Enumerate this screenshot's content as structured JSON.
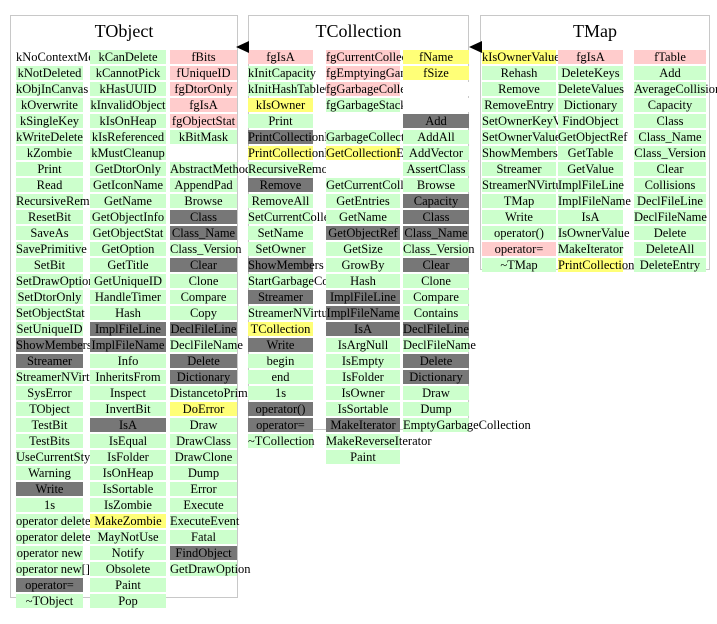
{
  "colors": {
    "green": "#ccffcc",
    "pink": "#ffcccc",
    "yellow": "#ffff77",
    "gray": "#777777",
    "white": "#ffffff"
  },
  "classes": [
    {
      "title": "TObject",
      "columns": [
        {
          "items": [
            {
              "t": "kNoContextMenu",
              "s": "w"
            },
            {
              "t": "kNotDeleted",
              "s": "g"
            },
            {
              "t": "kObjInCanvas",
              "s": "g"
            },
            {
              "t": "kOverwrite",
              "s": "g"
            },
            {
              "t": "kSingleKey",
              "s": "g"
            },
            {
              "t": "kWriteDelete",
              "s": "g"
            },
            {
              "t": "kZombie",
              "s": "g"
            },
            {
              "t": "Print",
              "s": "g"
            },
            {
              "t": "Read",
              "s": "g"
            },
            {
              "t": "RecursiveRemove",
              "s": "g"
            },
            {
              "t": "ResetBit",
              "s": "g"
            },
            {
              "t": "SaveAs",
              "s": "g"
            },
            {
              "t": "SavePrimitive",
              "s": "g"
            },
            {
              "t": "SetBit",
              "s": "g"
            },
            {
              "t": "SetDrawOption",
              "s": "g"
            },
            {
              "t": "SetDtorOnly",
              "s": "g"
            },
            {
              "t": "SetObjectStat",
              "s": "g"
            },
            {
              "t": "SetUniqueID",
              "s": "g"
            },
            {
              "t": "ShowMembers",
              "s": "d"
            },
            {
              "t": "Streamer",
              "s": "d"
            },
            {
              "t": "StreamerNVirtual",
              "s": "g"
            },
            {
              "t": "SysError",
              "s": "g"
            },
            {
              "t": "TObject",
              "s": "g"
            },
            {
              "t": "TestBit",
              "s": "g"
            },
            {
              "t": "TestBits",
              "s": "g"
            },
            {
              "t": "UseCurrentStyle",
              "s": "g"
            },
            {
              "t": "Warning",
              "s": "g"
            },
            {
              "t": "Write",
              "s": "d"
            },
            {
              "t": "1s",
              "s": "g"
            },
            {
              "t": "operator delete",
              "s": "g"
            },
            {
              "t": "operator delete[]",
              "s": "g"
            },
            {
              "t": "operator new",
              "s": "g"
            },
            {
              "t": "operator new[]",
              "s": "g"
            },
            {
              "t": "operator=",
              "s": "d"
            },
            {
              "t": "~TObject",
              "s": "g"
            }
          ]
        },
        {
          "items": [
            {
              "t": "kCanDelete",
              "s": "g"
            },
            {
              "t": "kCannotPick",
              "s": "g"
            },
            {
              "t": "kHasUUID",
              "s": "g"
            },
            {
              "t": "kInvalidObject",
              "s": "g"
            },
            {
              "t": "kIsOnHeap",
              "s": "g"
            },
            {
              "t": "kIsReferenced",
              "s": "g"
            },
            {
              "t": "kMustCleanup",
              "s": "g"
            },
            {
              "t": "GetDtorOnly",
              "s": "g"
            },
            {
              "t": "GetIconName",
              "s": "g"
            },
            {
              "t": "GetName",
              "s": "g"
            },
            {
              "t": "GetObjectInfo",
              "s": "g"
            },
            {
              "t": "GetObjectStat",
              "s": "g"
            },
            {
              "t": "GetOption",
              "s": "g"
            },
            {
              "t": "GetTitle",
              "s": "g"
            },
            {
              "t": "GetUniqueID",
              "s": "g"
            },
            {
              "t": "HandleTimer",
              "s": "g"
            },
            {
              "t": "Hash",
              "s": "g"
            },
            {
              "t": "ImplFileLine",
              "s": "d"
            },
            {
              "t": "ImplFileName",
              "s": "d"
            },
            {
              "t": "Info",
              "s": "g"
            },
            {
              "t": "InheritsFrom",
              "s": "g"
            },
            {
              "t": "Inspect",
              "s": "g"
            },
            {
              "t": "InvertBit",
              "s": "g"
            },
            {
              "t": "IsA",
              "s": "d"
            },
            {
              "t": "IsEqual",
              "s": "g"
            },
            {
              "t": "IsFolder",
              "s": "g"
            },
            {
              "t": "IsOnHeap",
              "s": "g"
            },
            {
              "t": "IsSortable",
              "s": "g"
            },
            {
              "t": "IsZombie",
              "s": "g"
            },
            {
              "t": "MakeZombie",
              "s": "y"
            },
            {
              "t": "MayNotUse",
              "s": "g"
            },
            {
              "t": "Notify",
              "s": "g"
            },
            {
              "t": "Obsolete",
              "s": "g"
            },
            {
              "t": "Paint",
              "s": "g"
            },
            {
              "t": "Pop",
              "s": "g"
            }
          ]
        },
        {
          "items": [
            {
              "t": "fBits",
              "s": "p"
            },
            {
              "t": "fUniqueID",
              "s": "p"
            },
            {
              "t": "fgDtorOnly",
              "s": "p"
            },
            {
              "t": "fgIsA",
              "s": "p"
            },
            {
              "t": "fgObjectStat",
              "s": "p"
            },
            {
              "t": "kBitMask",
              "s": "g"
            },
            {
              "t": "",
              "s": "w"
            },
            {
              "t": "AbstractMethod",
              "s": "g"
            },
            {
              "t": "AppendPad",
              "s": "g"
            },
            {
              "t": "Browse",
              "s": "g"
            },
            {
              "t": "Class",
              "s": "d"
            },
            {
              "t": "Class_Name",
              "s": "d"
            },
            {
              "t": "Class_Version",
              "s": "g"
            },
            {
              "t": "Clear",
              "s": "d"
            },
            {
              "t": "Clone",
              "s": "g"
            },
            {
              "t": "Compare",
              "s": "g"
            },
            {
              "t": "Copy",
              "s": "g"
            },
            {
              "t": "DeclFileLine",
              "s": "d"
            },
            {
              "t": "DeclFileName",
              "s": "g"
            },
            {
              "t": "Delete",
              "s": "d"
            },
            {
              "t": "Dictionary",
              "s": "d"
            },
            {
              "t": "DistancetoPrimitive",
              "s": "g"
            },
            {
              "t": "DoError",
              "s": "y"
            },
            {
              "t": "Draw",
              "s": "g"
            },
            {
              "t": "DrawClass",
              "s": "g"
            },
            {
              "t": "DrawClone",
              "s": "g"
            },
            {
              "t": "Dump",
              "s": "g"
            },
            {
              "t": "Error",
              "s": "g"
            },
            {
              "t": "Execute",
              "s": "g"
            },
            {
              "t": "ExecuteEvent",
              "s": "g"
            },
            {
              "t": "Fatal",
              "s": "g"
            },
            {
              "t": "FindObject",
              "s": "d"
            },
            {
              "t": "GetDrawOption",
              "s": "g"
            }
          ]
        }
      ]
    },
    {
      "title": "TCollection",
      "columns": [
        {
          "items": [
            {
              "t": "fgIsA",
              "s": "p"
            },
            {
              "t": "kInitCapacity",
              "s": "g"
            },
            {
              "t": "kInitHashTableCapacity",
              "s": "g"
            },
            {
              "t": "kIsOwner",
              "s": "y"
            },
            {
              "t": "Print",
              "s": "g"
            },
            {
              "t": "PrintCollectionEntry",
              "s": "d"
            },
            {
              "t": "PrintCollectionHeader",
              "s": "y"
            },
            {
              "t": "RecursiveRemove",
              "s": "g"
            },
            {
              "t": "Remove",
              "s": "d"
            },
            {
              "t": "RemoveAll",
              "s": "g"
            },
            {
              "t": "SetCurrentCollection",
              "s": "g"
            },
            {
              "t": "SetName",
              "s": "g"
            },
            {
              "t": "SetOwner",
              "s": "g"
            },
            {
              "t": "ShowMembers",
              "s": "d"
            },
            {
              "t": "StartGarbageCollection",
              "s": "g"
            },
            {
              "t": "Streamer",
              "s": "d"
            },
            {
              "t": "StreamerNVirtual",
              "s": "g"
            },
            {
              "t": "TCollection",
              "s": "y"
            },
            {
              "t": "Write",
              "s": "d"
            },
            {
              "t": "begin",
              "s": "g"
            },
            {
              "t": "end",
              "s": "g"
            },
            {
              "t": "1s",
              "s": "g"
            },
            {
              "t": "operator()",
              "s": "d"
            },
            {
              "t": "operator=",
              "s": "d"
            },
            {
              "t": "~TCollection",
              "s": "g"
            }
          ]
        },
        {
          "items": [
            {
              "t": "fgCurrentCollection",
              "s": "p"
            },
            {
              "t": "fgEmptyingGarbage",
              "s": "p"
            },
            {
              "t": "fgGarbageCollection",
              "s": "p"
            },
            {
              "t": "fgGarbageStack",
              "s": "g"
            },
            {
              "t": "",
              "s": "w"
            },
            {
              "t": "GarbageCollect",
              "s": "g"
            },
            {
              "t": "GetCollectionEntryName",
              "s": "y"
            },
            {
              "t": "",
              "s": "w"
            },
            {
              "t": "GetCurrentCollection",
              "s": "g"
            },
            {
              "t": "GetEntries",
              "s": "g"
            },
            {
              "t": "GetName",
              "s": "g"
            },
            {
              "t": "GetObjectRef",
              "s": "d"
            },
            {
              "t": "GetSize",
              "s": "g"
            },
            {
              "t": "GrowBy",
              "s": "g"
            },
            {
              "t": "Hash",
              "s": "g"
            },
            {
              "t": "ImplFileLine",
              "s": "d"
            },
            {
              "t": "ImplFileName",
              "s": "d"
            },
            {
              "t": "IsA",
              "s": "d"
            },
            {
              "t": "IsArgNull",
              "s": "g"
            },
            {
              "t": "IsEmpty",
              "s": "g"
            },
            {
              "t": "IsFolder",
              "s": "g"
            },
            {
              "t": "IsOwner",
              "s": "g"
            },
            {
              "t": "IsSortable",
              "s": "g"
            },
            {
              "t": "MakeIterator",
              "s": "d"
            },
            {
              "t": "MakeReverseIterator",
              "s": "g"
            },
            {
              "t": "Paint",
              "s": "g"
            }
          ]
        },
        {
          "items": [
            {
              "t": "fName",
              "s": "y"
            },
            {
              "t": "fSize",
              "s": "y"
            },
            {
              "t": "",
              "s": "w"
            },
            {
              "t": "",
              "s": "w"
            },
            {
              "t": "Add",
              "s": "d"
            },
            {
              "t": "AddAll",
              "s": "g"
            },
            {
              "t": "AddVector",
              "s": "g"
            },
            {
              "t": "AssertClass",
              "s": "g"
            },
            {
              "t": "Browse",
              "s": "g"
            },
            {
              "t": "Capacity",
              "s": "d"
            },
            {
              "t": "Class",
              "s": "d"
            },
            {
              "t": "Class_Name",
              "s": "d"
            },
            {
              "t": "Class_Version",
              "s": "g"
            },
            {
              "t": "Clear",
              "s": "d"
            },
            {
              "t": "Clone",
              "s": "g"
            },
            {
              "t": "Compare",
              "s": "g"
            },
            {
              "t": "Contains",
              "s": "g"
            },
            {
              "t": "DeclFileLine",
              "s": "d"
            },
            {
              "t": "DeclFileName",
              "s": "g"
            },
            {
              "t": "Delete",
              "s": "d"
            },
            {
              "t": "Dictionary",
              "s": "d"
            },
            {
              "t": "Draw",
              "s": "g"
            },
            {
              "t": "Dump",
              "s": "g"
            },
            {
              "t": "EmptyGarbageCollection",
              "s": "g"
            }
          ]
        }
      ]
    },
    {
      "title": "TMap",
      "columns": [
        {
          "items": [
            {
              "t": "kIsOwnerValue",
              "s": "y"
            },
            {
              "t": "Rehash",
              "s": "g"
            },
            {
              "t": "Remove",
              "s": "g"
            },
            {
              "t": "RemoveEntry",
              "s": "g"
            },
            {
              "t": "SetOwnerKeyValue",
              "s": "g"
            },
            {
              "t": "SetOwnerValue",
              "s": "g"
            },
            {
              "t": "ShowMembers",
              "s": "g"
            },
            {
              "t": "Streamer",
              "s": "g"
            },
            {
              "t": "StreamerNVirtual",
              "s": "g"
            },
            {
              "t": "TMap",
              "s": "g"
            },
            {
              "t": "Write",
              "s": "g"
            },
            {
              "t": "operator()",
              "s": "g"
            },
            {
              "t": "operator=",
              "s": "p"
            },
            {
              "t": "~TMap",
              "s": "g"
            }
          ]
        },
        {
          "items": [
            {
              "t": "fgIsA",
              "s": "p"
            },
            {
              "t": "DeleteKeys",
              "s": "g"
            },
            {
              "t": "DeleteValues",
              "s": "g"
            },
            {
              "t": "Dictionary",
              "s": "g"
            },
            {
              "t": "FindObject",
              "s": "g"
            },
            {
              "t": "GetObjectRef",
              "s": "g"
            },
            {
              "t": "GetTable",
              "s": "g"
            },
            {
              "t": "GetValue",
              "s": "g"
            },
            {
              "t": "ImplFileLine",
              "s": "g"
            },
            {
              "t": "ImplFileName",
              "s": "g"
            },
            {
              "t": "IsA",
              "s": "g"
            },
            {
              "t": "IsOwnerValue",
              "s": "g"
            },
            {
              "t": "MakeIterator",
              "s": "g"
            },
            {
              "t": "PrintCollectionEntry",
              "s": "y"
            }
          ]
        },
        {
          "items": [
            {
              "t": "fTable",
              "s": "p"
            },
            {
              "t": "Add",
              "s": "g"
            },
            {
              "t": "AverageCollisions",
              "s": "g"
            },
            {
              "t": "Capacity",
              "s": "g"
            },
            {
              "t": "Class",
              "s": "g"
            },
            {
              "t": "Class_Name",
              "s": "g"
            },
            {
              "t": "Class_Version",
              "s": "g"
            },
            {
              "t": "Clear",
              "s": "g"
            },
            {
              "t": "Collisions",
              "s": "g"
            },
            {
              "t": "DeclFileLine",
              "s": "g"
            },
            {
              "t": "DeclFileName",
              "s": "g"
            },
            {
              "t": "Delete",
              "s": "g"
            },
            {
              "t": "DeleteAll",
              "s": "g"
            },
            {
              "t": "DeleteEntry",
              "s": "g"
            }
          ]
        }
      ]
    }
  ]
}
